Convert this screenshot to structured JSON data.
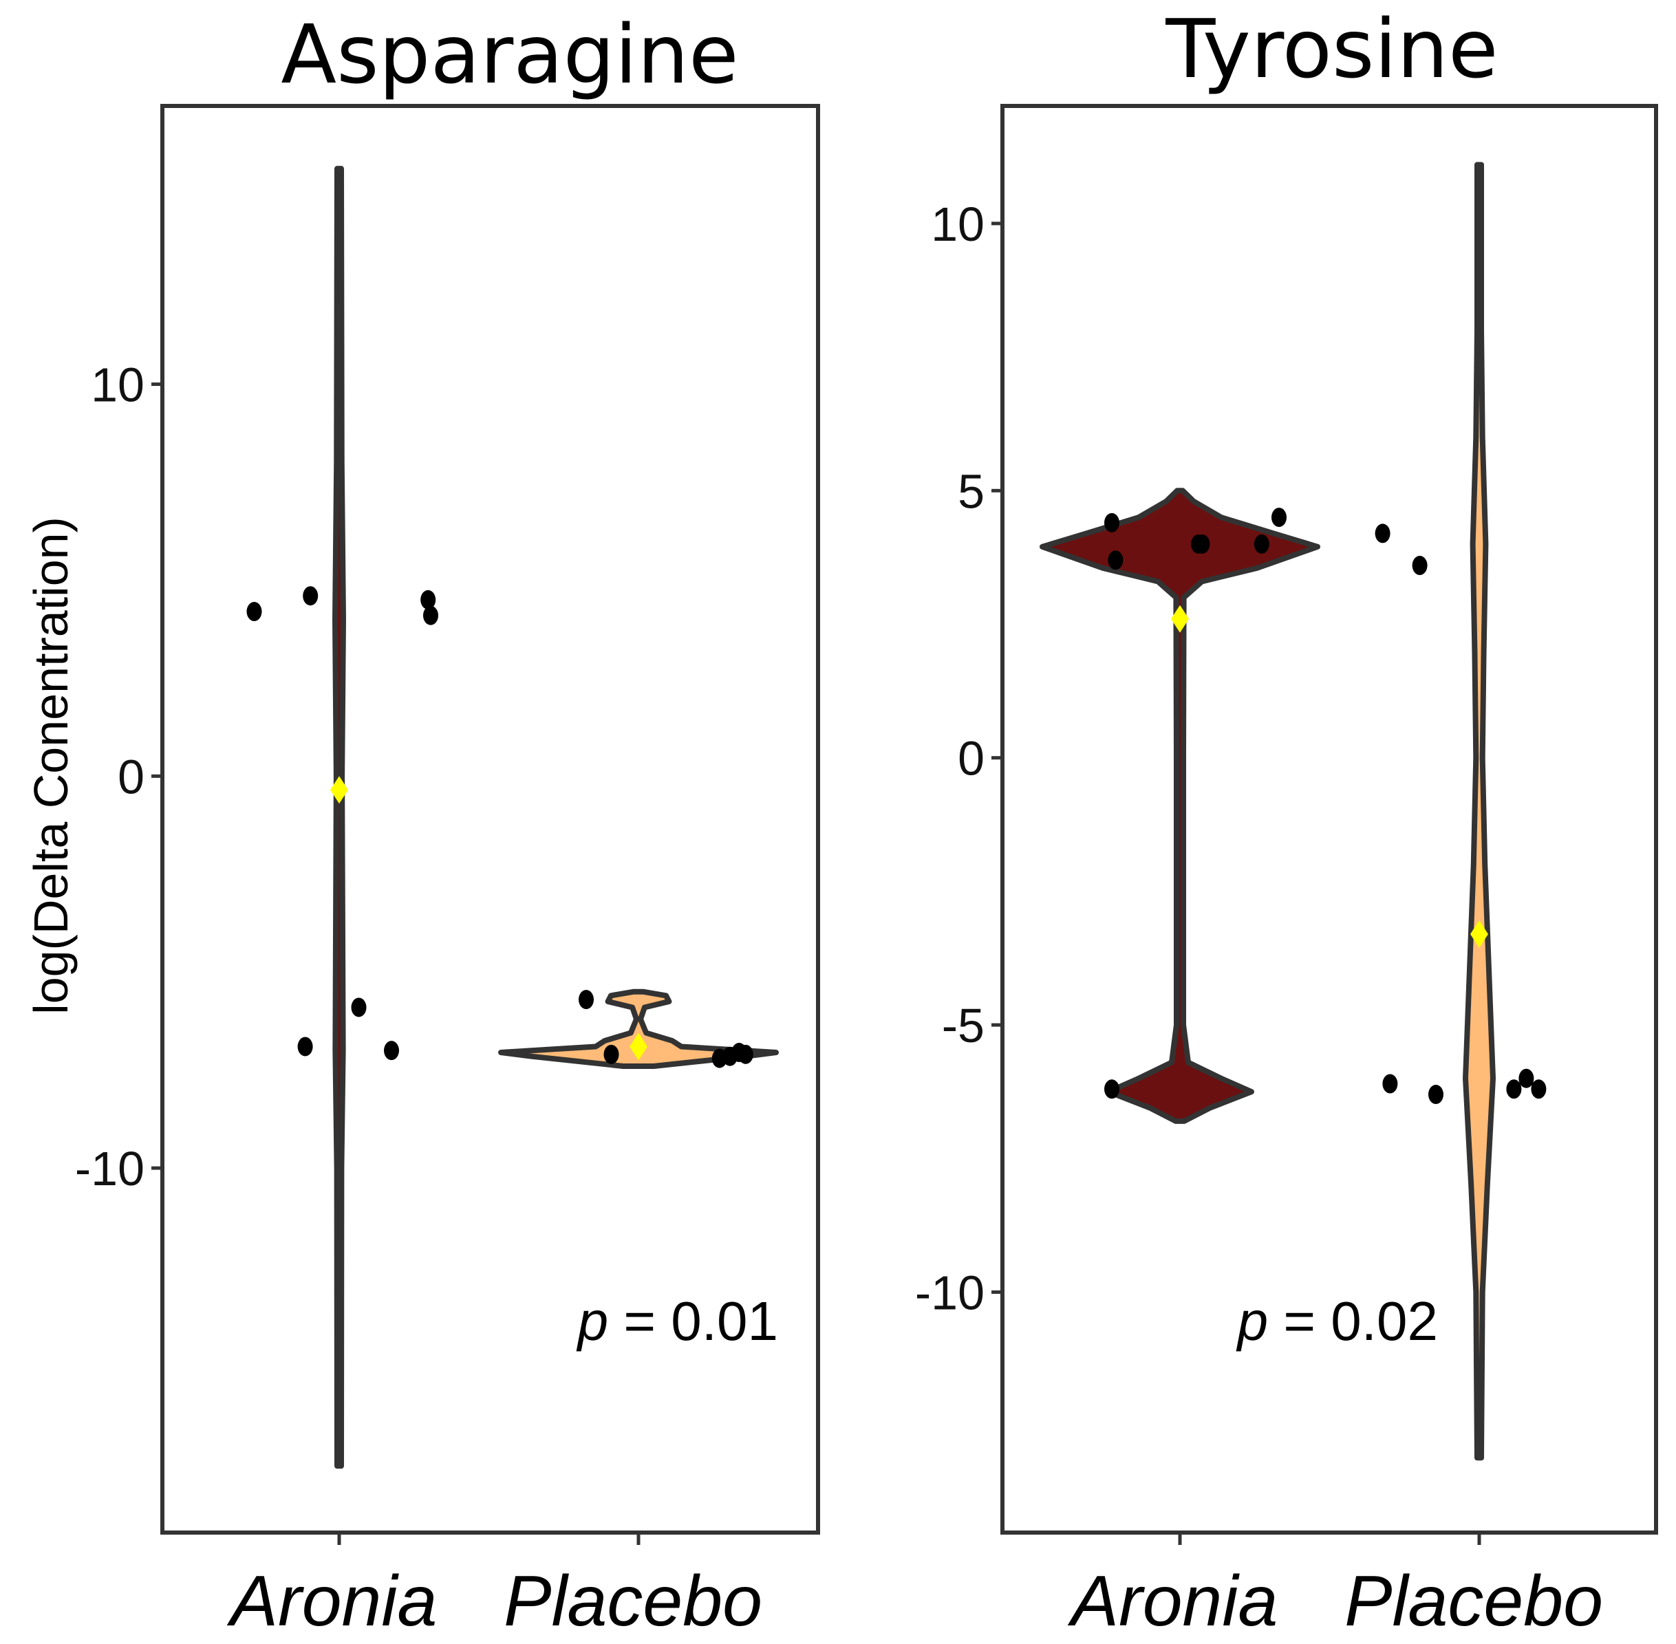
{
  "chart_data": [
    {
      "type": "violin",
      "title": "Asparagine",
      "ylabel": "log(Delta Conentration)",
      "xlabel": "",
      "ylim": [
        -19.3,
        17.1
      ],
      "yticks": [
        "10",
        "0",
        "-10"
      ],
      "ytick_values": [
        10,
        0,
        -10
      ],
      "categories": [
        "Aronia",
        "Placebo"
      ],
      "annotation": {
        "p_symbol": "p",
        "rest": " = 0.01"
      },
      "series": [
        {
          "name": "Aronia",
          "fill": "#6b1010",
          "range": [
            -17.6,
            15.5
          ],
          "mean": -0.35,
          "points": [
            4.2,
            4.6,
            4.5,
            4.1,
            -6.9,
            -5.9,
            -7.0
          ],
          "density": [
            [
              -17.6,
              0.005
            ],
            [
              -10,
              0.018
            ],
            [
              -7,
              0.03
            ],
            [
              0,
              0.022
            ],
            [
              4,
              0.032
            ],
            [
              8,
              0.02
            ],
            [
              15.5,
              0.005
            ]
          ]
        },
        {
          "name": "Placebo",
          "fill": "#ffbb77",
          "range": [
            -7.4,
            -5.5
          ],
          "mean": -6.9,
          "points": [
            -5.7,
            -7.1,
            -7.2,
            -7.15,
            -7.05,
            -7.1
          ],
          "density": [
            [
              -7.4,
              0.1
            ],
            [
              -7.15,
              0.7
            ],
            [
              -7.05,
              0.9
            ],
            [
              -6.9,
              0.28
            ],
            [
              -6.75,
              0.22
            ],
            [
              -6.55,
              0.05
            ],
            [
              -6.2,
              0.01
            ],
            [
              -5.9,
              0.04
            ],
            [
              -5.75,
              0.2
            ],
            [
              -5.6,
              0.18
            ],
            [
              -5.5,
              0.03
            ]
          ]
        }
      ]
    },
    {
      "type": "violin",
      "title": "Tyrosine",
      "ylabel": "",
      "xlabel": "",
      "ylim": [
        -14.5,
        12.2
      ],
      "yticks": [
        "10",
        "5",
        "0",
        "-5",
        "-10"
      ],
      "ytick_values": [
        10,
        5,
        0,
        -5,
        -10
      ],
      "categories": [
        "Aronia",
        "Placebo"
      ],
      "annotation": {
        "p_symbol": "p",
        "rest": " = 0.02"
      },
      "series": [
        {
          "name": "Aronia",
          "fill": "#6b1010",
          "range": [
            -6.8,
            5.0
          ],
          "mean": 2.6,
          "points": [
            4.4,
            3.7,
            4.0,
            4.0,
            4.0,
            4.5,
            -6.2
          ],
          "density": [
            [
              -6.8,
              0.03
            ],
            [
              -6.55,
              0.22
            ],
            [
              -6.25,
              0.52
            ],
            [
              -6.0,
              0.3
            ],
            [
              -5.7,
              0.06
            ],
            [
              -5.0,
              0.025
            ],
            [
              0,
              0.025
            ],
            [
              3.0,
              0.028
            ],
            [
              3.3,
              0.16
            ],
            [
              3.55,
              0.56
            ],
            [
              3.95,
              1.0
            ],
            [
              4.2,
              0.68
            ],
            [
              4.5,
              0.3
            ],
            [
              4.8,
              0.1
            ],
            [
              5.0,
              0.02
            ]
          ]
        },
        {
          "name": "Placebo",
          "fill": "#ffbb77",
          "range": [
            -13.1,
            11.1
          ],
          "mean": -3.3,
          "points": [
            4.2,
            3.6,
            -6.1,
            -6.3,
            -6.2,
            -6.0,
            -6.2
          ],
          "density": [
            [
              -13.1,
              0.004
            ],
            [
              -10,
              0.02
            ],
            [
              -8,
              0.05
            ],
            [
              -6,
              0.085
            ],
            [
              -4,
              0.06
            ],
            [
              -2,
              0.035
            ],
            [
              0,
              0.02
            ],
            [
              2,
              0.028
            ],
            [
              4,
              0.04
            ],
            [
              6,
              0.02
            ],
            [
              8,
              0.01
            ],
            [
              11.1,
              0.002
            ]
          ]
        }
      ]
    }
  ]
}
